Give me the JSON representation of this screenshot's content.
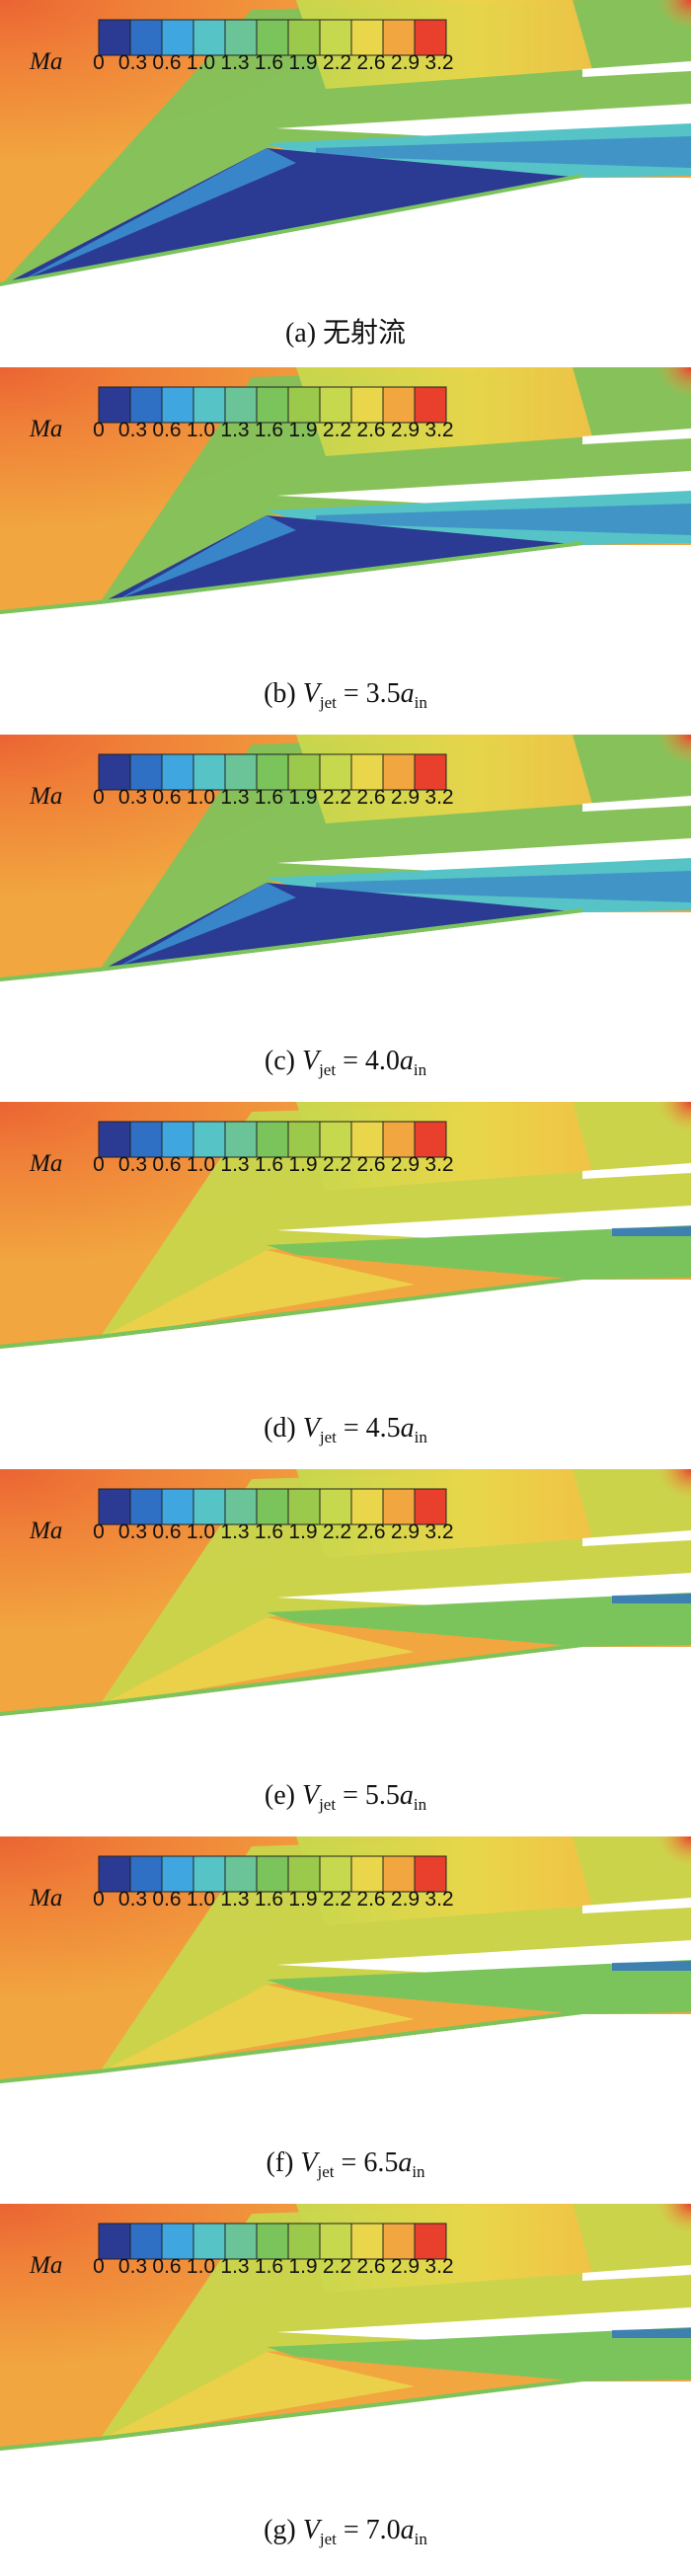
{
  "colorbar": {
    "label": "Ma",
    "ticks": [
      "0",
      "0.3",
      "0.6",
      "1.0",
      "1.3",
      "1.6",
      "1.9",
      "2.2",
      "2.6",
      "2.9",
      "3.2"
    ],
    "colors": [
      "#2b3a93",
      "#2f6fc4",
      "#3fa6df",
      "#56c3c7",
      "#6bc497",
      "#7bc45c",
      "#9bc94b",
      "#c6d84d",
      "#ead64a",
      "#f2a640",
      "#e8402d"
    ]
  },
  "panels": [
    {
      "id": "a",
      "letter": "(a)",
      "caption": "无射流",
      "jet": false
    },
    {
      "id": "b",
      "letter": "(b)",
      "v": "V",
      "v_sub": "jet",
      "eq": " = 3.5",
      "a": "a",
      "a_sub": "in",
      "jet": true,
      "jet_strength": 3.5
    },
    {
      "id": "c",
      "letter": "(c)",
      "v": "V",
      "v_sub": "jet",
      "eq": " = 4.0",
      "a": "a",
      "a_sub": "in",
      "jet": true,
      "jet_strength": 4.0
    },
    {
      "id": "d",
      "letter": "(d)",
      "v": "V",
      "v_sub": "jet",
      "eq": " = 4.5",
      "a": "a",
      "a_sub": "in",
      "jet": true,
      "jet_strength": 4.5
    },
    {
      "id": "e",
      "letter": "(e)",
      "v": "V",
      "v_sub": "jet",
      "eq": " = 5.5",
      "a": "a",
      "a_sub": "in",
      "jet": true,
      "jet_strength": 5.5
    },
    {
      "id": "f",
      "letter": "(f)",
      "v": "V",
      "v_sub": "jet",
      "eq": " = 6.5",
      "a": "a",
      "a_sub": "in",
      "jet": true,
      "jet_strength": 6.5
    },
    {
      "id": "g",
      "letter": "(g)",
      "v": "V",
      "v_sub": "jet",
      "eq": " = 7.0",
      "a": "a",
      "a_sub": "in",
      "jet": true,
      "jet_strength": 7.0
    }
  ]
}
